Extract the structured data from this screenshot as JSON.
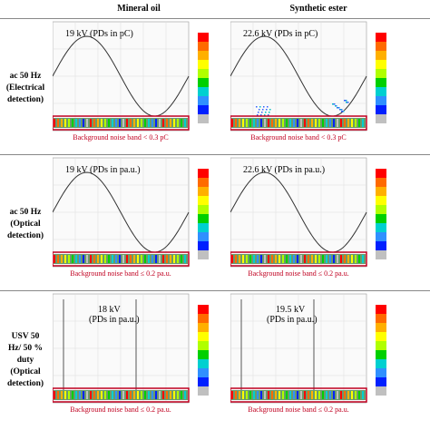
{
  "header": {
    "corner": "",
    "columns": [
      "Mineral oil",
      "Synthetic ester"
    ]
  },
  "rows": [
    {
      "label": [
        "ac 50 Hz",
        "(Electrical",
        "detection)"
      ],
      "cells": [
        {
          "annotation": "19 kV (PDs in pC)",
          "noise": "Background noise band < 0.3 pC"
        },
        {
          "annotation": "22.6 kV (PDs in pC)",
          "noise": "Background noise band < 0.3 pC"
        }
      ]
    },
    {
      "label": [
        "ac 50 Hz",
        "(Optical",
        "detection)"
      ],
      "cells": [
        {
          "annotation": "19 kV (PDs in pa.u.)",
          "noise": "Background noise band ≤ 0.2 pa.u."
        },
        {
          "annotation": "22.6 kV (PDs in pa.u.)",
          "noise": "Background noise band ≤ 0.2 pa.u."
        }
      ]
    },
    {
      "label": [
        "USV 50",
        "Hz/ 50 %",
        "duty",
        "(Optical",
        "detection)"
      ],
      "cells": [
        {
          "annotation": "18 kV\n(PDs in pa.u.)",
          "noise": "Background noise band ≤ 0.2 pa.u."
        },
        {
          "annotation": "19.5 kV\n(PDs in pa.u.)",
          "noise": "Background noise band ≤ 0.2 pa.u."
        }
      ]
    }
  ]
}
